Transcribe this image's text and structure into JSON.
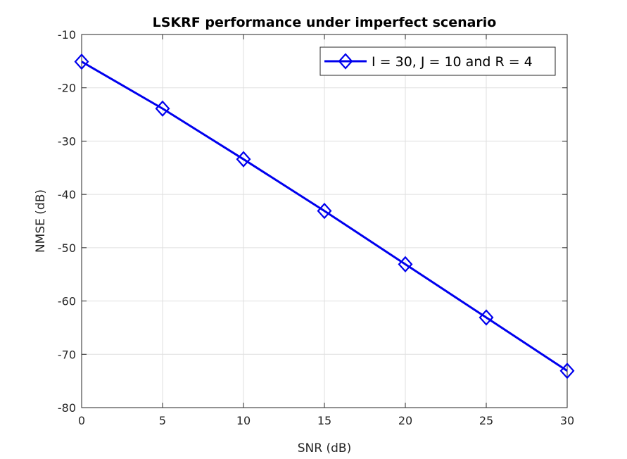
{
  "chart_data": {
    "type": "line",
    "title": "LSKRF performance under imperfect scenario",
    "xlabel": "SNR (dB)",
    "ylabel": "NMSE (dB)",
    "xlim": [
      0,
      30
    ],
    "ylim": [
      -80,
      -10
    ],
    "xticks": [
      0,
      5,
      10,
      15,
      20,
      25,
      30
    ],
    "yticks": [
      -80,
      -70,
      -60,
      -50,
      -40,
      -30,
      -20,
      -10
    ],
    "xtick_labels": [
      "0",
      "5",
      "10",
      "15",
      "20",
      "25",
      "30"
    ],
    "ytick_labels": [
      "-80",
      "-70",
      "-60",
      "-50",
      "-40",
      "-30",
      "-20",
      "-10"
    ],
    "grid": true,
    "legend_position": "top-right",
    "series": [
      {
        "name": "I = 30, J = 10 and R = 4",
        "color": "#0000ee",
        "marker": "diamond",
        "x": [
          0,
          5,
          10,
          15,
          20,
          25,
          30
        ],
        "y": [
          -15.1,
          -23.9,
          -33.4,
          -43.1,
          -53.1,
          -63.1,
          -73.1
        ]
      }
    ]
  }
}
